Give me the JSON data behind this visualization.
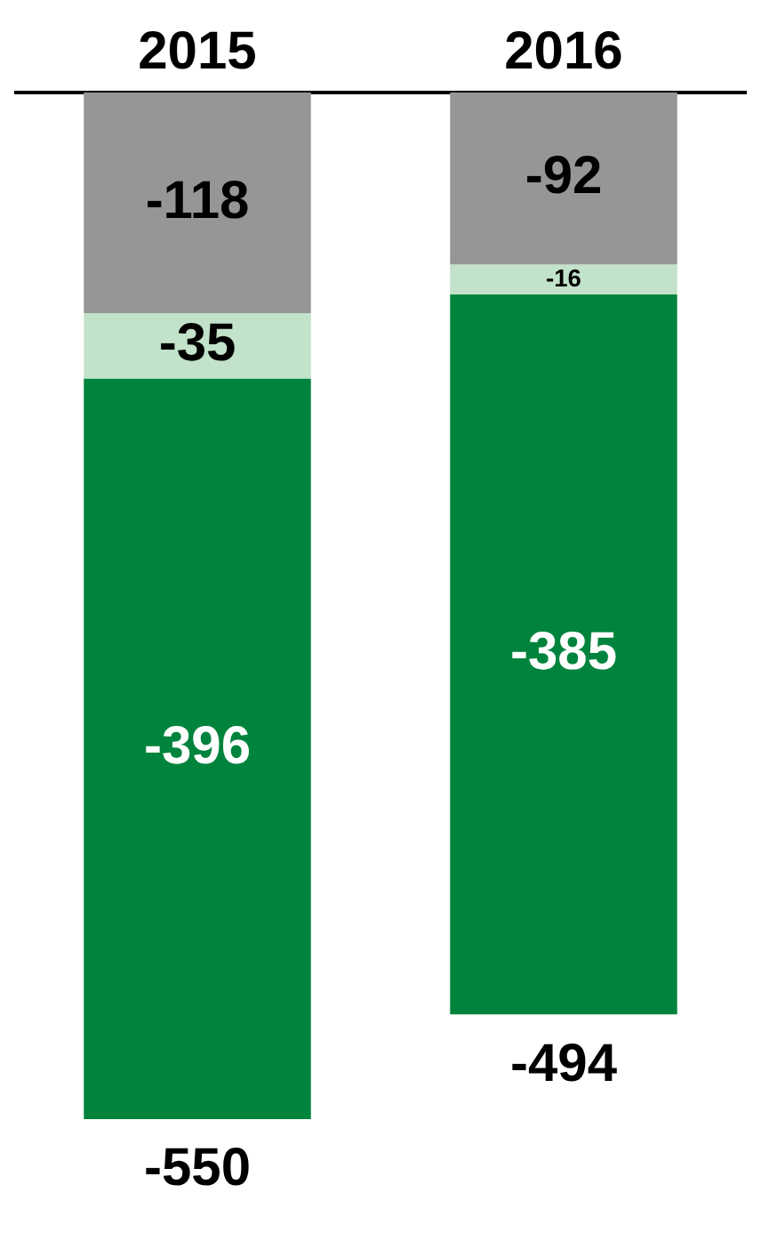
{
  "chart_data": {
    "type": "bar",
    "stacked": true,
    "categories": [
      "2015",
      "2016"
    ],
    "series": [
      {
        "color": "#969696",
        "values": [
          -118,
          -92
        ]
      },
      {
        "color": "#c2e2c9",
        "values": [
          -35,
          -16
        ]
      },
      {
        "color": "#00843d",
        "values": [
          -396,
          -385
        ]
      }
    ],
    "ylim": [
      -550,
      0
    ],
    "data_labels": true,
    "totals": [
      "-550",
      "-494"
    ],
    "grid": false,
    "legend": false,
    "tick_labels": "x"
  }
}
